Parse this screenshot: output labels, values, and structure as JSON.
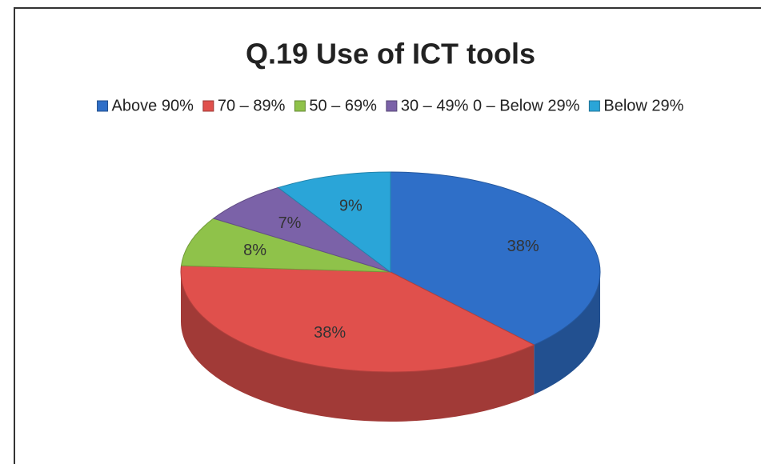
{
  "chart_data": {
    "type": "pie",
    "title": "Q.19 Use of ICT tools",
    "categories": [
      "Above 90%",
      "70 – 89%",
      "50 – 69%",
      "30 – 49% 0 – Below 29%",
      "Below 29%"
    ],
    "values": [
      38,
      38,
      8,
      7,
      9
    ],
    "value_labels": [
      "38%",
      "38%",
      "8%",
      "7%",
      "9%"
    ],
    "colors": [
      "#2f6fc8",
      "#e0504c",
      "#8fc24a",
      "#7b62a8",
      "#2aa5d8"
    ],
    "legend": "top"
  }
}
